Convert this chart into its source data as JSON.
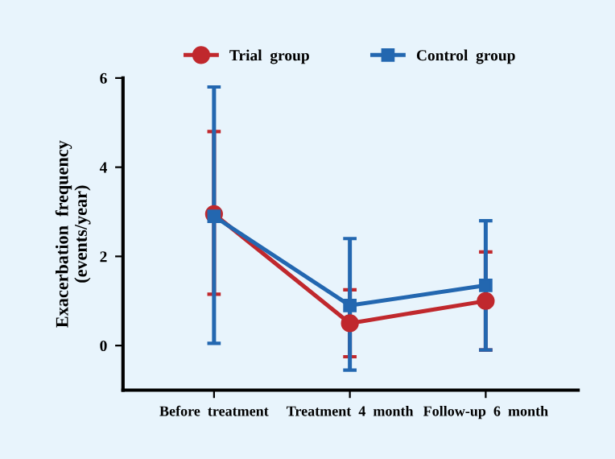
{
  "chart_data": {
    "type": "line",
    "ylabel": "Exacerbation  frequency\n(events/year)",
    "categories": [
      "Before  treatment",
      "Treatment  4  month",
      "Follow-up  6  month"
    ],
    "series": [
      {
        "name": "Trial  group",
        "color": "#c0282d",
        "marker": "circle",
        "values": [
          2.95,
          0.5,
          1.0
        ],
        "errors": [
          [
            1.15,
            4.8
          ],
          [
            -0.25,
            1.25
          ],
          [
            -0.1,
            2.1
          ]
        ]
      },
      {
        "name": "Control  group",
        "color": "#2367b0",
        "marker": "square",
        "values": [
          2.9,
          0.9,
          1.35
        ],
        "errors": [
          [
            0.05,
            5.8
          ],
          [
            -0.55,
            2.4
          ],
          [
            -0.1,
            2.8
          ]
        ]
      }
    ],
    "ylim": [
      -1,
      6
    ],
    "yticks": [
      0,
      2,
      4,
      6
    ],
    "grid": false,
    "legend": "top"
  }
}
